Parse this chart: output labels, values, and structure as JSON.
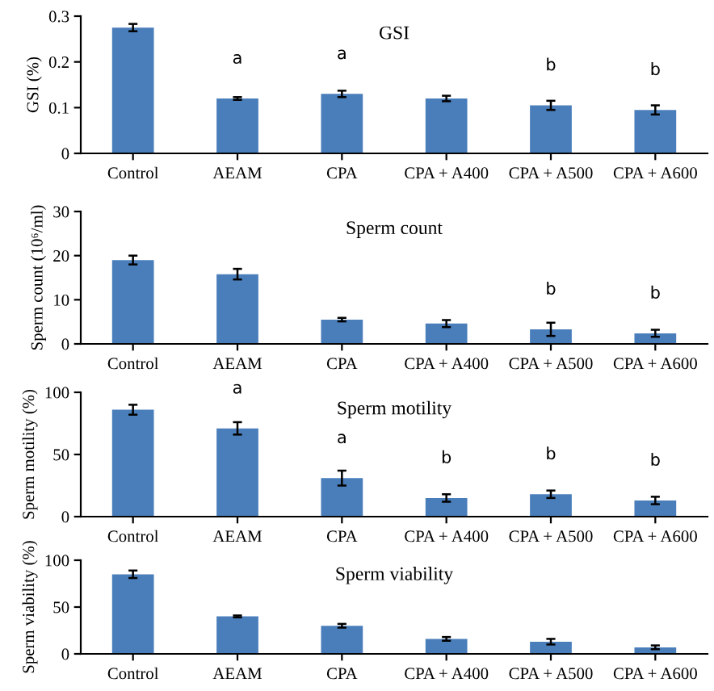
{
  "chart_data": [
    {
      "type": "bar",
      "title": "GSI",
      "ylabel": "GSI (%)",
      "categories": [
        "Control",
        "AEAM",
        "CPA",
        "CPA + A400",
        "CPA + A500",
        "CPA + A600"
      ],
      "values": [
        0.275,
        0.12,
        0.13,
        0.12,
        0.105,
        0.095
      ],
      "errors": [
        0.008,
        0.003,
        0.007,
        0.006,
        0.01,
        0.01
      ],
      "color": "#4a7ebb",
      "ylim": [
        0,
        0.3
      ],
      "yticks": [
        0,
        0.1,
        0.2,
        0.3
      ],
      "grid": false,
      "annotations": [
        {
          "text": "a",
          "x": "AEAM",
          "y": 0.12
        },
        {
          "text": "a",
          "x": "CPA",
          "y": 0.13
        },
        {
          "text": "b",
          "x": "CPA + A500",
          "y": 0.105
        },
        {
          "text": "b",
          "x": "CPA + A600",
          "y": 0.095
        }
      ]
    },
    {
      "type": "bar",
      "title": "Sperm count",
      "ylabel": "Sperm count (10⁶/ml)",
      "categories": [
        "Control",
        "AEAM",
        "CPA",
        "CPA + A400",
        "CPA + A500",
        "CPA + A600"
      ],
      "values": [
        19,
        15.8,
        5.5,
        4.6,
        3.3,
        2.4
      ],
      "errors": [
        1,
        1.2,
        0.4,
        0.8,
        1.5,
        0.8
      ],
      "color": "#4a7ebb",
      "ylim": [
        0,
        30
      ],
      "yticks": [
        0,
        10,
        20,
        30
      ],
      "grid": false,
      "annotations": [
        {
          "text": "b",
          "x": "CPA + A500",
          "y": 3.3
        },
        {
          "text": "b",
          "x": "CPA + A600",
          "y": 2.4
        }
      ]
    },
    {
      "type": "bar",
      "title": "Sperm motility",
      "ylabel": "Sperm motility (%)",
      "categories": [
        "Control",
        "AEAM",
        "CPA",
        "CPA + A400",
        "CPA + A500",
        "CPA + A600"
      ],
      "values": [
        86,
        71,
        31,
        15,
        18,
        13
      ],
      "errors": [
        4,
        5,
        6,
        3,
        3,
        3
      ],
      "color": "#4a7ebb",
      "ylim": [
        0,
        100
      ],
      "yticks": [
        0,
        50,
        100
      ],
      "grid": false,
      "annotations": [
        {
          "text": "a",
          "x": "AEAM",
          "y": 71
        },
        {
          "text": "a",
          "x": "CPA",
          "y": 31
        },
        {
          "text": "b",
          "x": "CPA + A400",
          "y": 15
        },
        {
          "text": "b",
          "x": "CPA + A500",
          "y": 18
        },
        {
          "text": "b",
          "x": "CPA + A600",
          "y": 13
        }
      ]
    },
    {
      "type": "bar",
      "title": "Sperm viability",
      "ylabel": "Sperm viability (%)",
      "categories": [
        "Control",
        "AEAM",
        "CPA",
        "CPA + A400",
        "CPA + A500",
        "CPA + A600"
      ],
      "values": [
        85,
        40,
        30,
        16,
        13,
        7
      ],
      "errors": [
        4,
        1,
        2,
        2,
        3,
        2
      ],
      "color": "#4a7ebb",
      "ylim": [
        0,
        100
      ],
      "yticks": [
        0,
        50,
        100
      ],
      "grid": false
    }
  ]
}
